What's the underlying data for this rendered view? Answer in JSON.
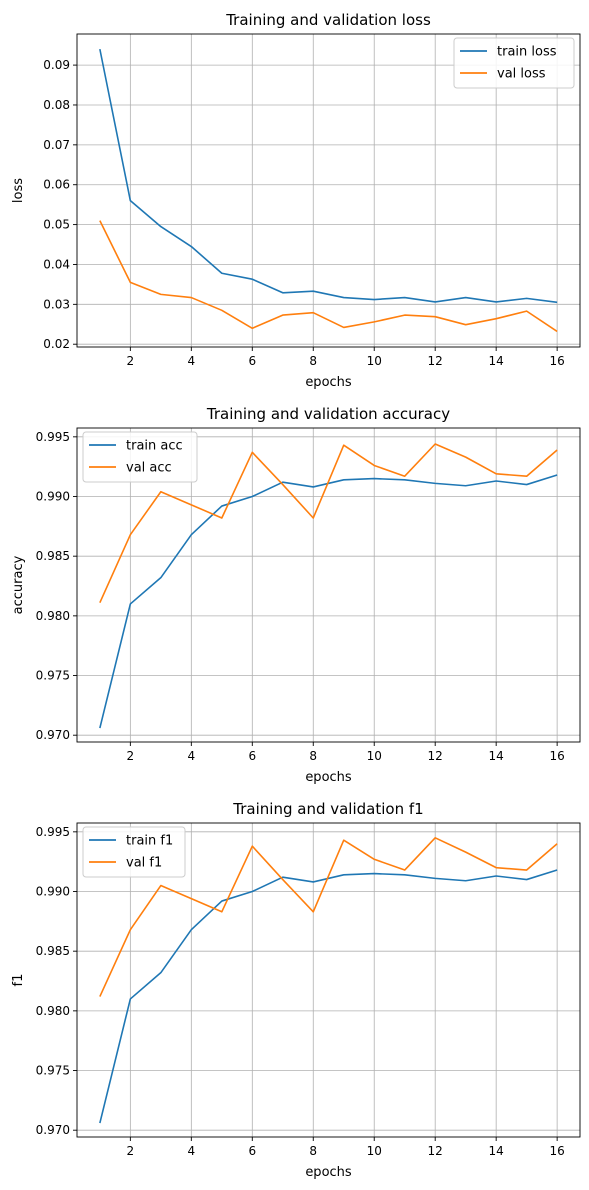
{
  "chart_data": [
    {
      "type": "line",
      "title": "Training and validation loss",
      "xlabel": "epochs",
      "ylabel": "loss",
      "x": [
        1,
        2,
        3,
        4,
        5,
        6,
        7,
        8,
        9,
        10,
        11,
        12,
        13,
        14,
        15,
        16
      ],
      "xlim": [
        0.25,
        16.75
      ],
      "ylim": [
        0.0193,
        0.0978
      ],
      "xticks": [
        2,
        4,
        6,
        8,
        10,
        12,
        14,
        16
      ],
      "yticks": [
        0.02,
        0.03,
        0.04,
        0.05,
        0.06,
        0.07,
        0.08,
        0.09
      ],
      "ytick_labels": [
        "0.02",
        "0.03",
        "0.04",
        "0.05",
        "0.06",
        "0.07",
        "0.08",
        "0.09"
      ],
      "grid": true,
      "legend_position": "top-right",
      "series": [
        {
          "name": "train loss",
          "color": "#1f77b4",
          "values": [
            0.094,
            0.056,
            0.0495,
            0.0445,
            0.0378,
            0.0363,
            0.0329,
            0.0333,
            0.0317,
            0.0312,
            0.0317,
            0.0306,
            0.0317,
            0.0306,
            0.0315,
            0.0305
          ]
        },
        {
          "name": "val loss",
          "color": "#ff7f0e",
          "values": [
            0.051,
            0.0355,
            0.0325,
            0.0317,
            0.0285,
            0.024,
            0.0273,
            0.0279,
            0.0242,
            0.0256,
            0.0273,
            0.0269,
            0.0249,
            0.0264,
            0.0283,
            0.0232
          ]
        }
      ]
    },
    {
      "type": "line",
      "title": "Training and validation accuracy",
      "xlabel": "epochs",
      "ylabel": "accuracy",
      "x": [
        1,
        2,
        3,
        4,
        5,
        6,
        7,
        8,
        9,
        10,
        11,
        12,
        13,
        14,
        15,
        16
      ],
      "xlim": [
        0.25,
        16.75
      ],
      "ylim": [
        0.96943,
        0.99574
      ],
      "xticks": [
        2,
        4,
        6,
        8,
        10,
        12,
        14,
        16
      ],
      "yticks": [
        0.97,
        0.975,
        0.98,
        0.985,
        0.99,
        0.995
      ],
      "ytick_labels": [
        "0.970",
        "0.975",
        "0.980",
        "0.985",
        "0.990",
        "0.995"
      ],
      "grid": true,
      "legend_position": "top-left",
      "series": [
        {
          "name": "train acc",
          "color": "#1f77b4",
          "values": [
            0.9706,
            0.981,
            0.9832,
            0.9868,
            0.9892,
            0.99,
            0.9912,
            0.9908,
            0.9914,
            0.9915,
            0.9914,
            0.9911,
            0.9909,
            0.9913,
            0.991,
            0.9918
          ]
        },
        {
          "name": "val acc",
          "color": "#ff7f0e",
          "values": [
            0.9811,
            0.9868,
            0.9904,
            0.9893,
            0.9882,
            0.9937,
            0.991,
            0.9882,
            0.9943,
            0.9926,
            0.9917,
            0.9944,
            0.9933,
            0.9919,
            0.9917,
            0.9939
          ]
        }
      ]
    },
    {
      "type": "line",
      "title": "Training and validation f1",
      "xlabel": "epochs",
      "ylabel": "f1",
      "x": [
        1,
        2,
        3,
        4,
        5,
        6,
        7,
        8,
        9,
        10,
        11,
        12,
        13,
        14,
        15,
        16
      ],
      "xlim": [
        0.25,
        16.75
      ],
      "ylim": [
        0.96943,
        0.99574
      ],
      "xticks": [
        2,
        4,
        6,
        8,
        10,
        12,
        14,
        16
      ],
      "yticks": [
        0.97,
        0.975,
        0.98,
        0.985,
        0.99,
        0.995
      ],
      "ytick_labels": [
        "0.970",
        "0.975",
        "0.980",
        "0.985",
        "0.990",
        "0.995"
      ],
      "grid": true,
      "legend_position": "top-left",
      "series": [
        {
          "name": "train f1",
          "color": "#1f77b4",
          "values": [
            0.9706,
            0.981,
            0.9832,
            0.9868,
            0.9892,
            0.99,
            0.9912,
            0.9908,
            0.9914,
            0.9915,
            0.9914,
            0.9911,
            0.9909,
            0.9913,
            0.991,
            0.9918
          ]
        },
        {
          "name": "val f1",
          "color": "#ff7f0e",
          "values": [
            0.9812,
            0.9868,
            0.9905,
            0.9894,
            0.9883,
            0.9938,
            0.991,
            0.9883,
            0.9943,
            0.9927,
            0.9918,
            0.9945,
            0.9933,
            0.992,
            0.9918,
            0.994
          ]
        }
      ]
    }
  ]
}
